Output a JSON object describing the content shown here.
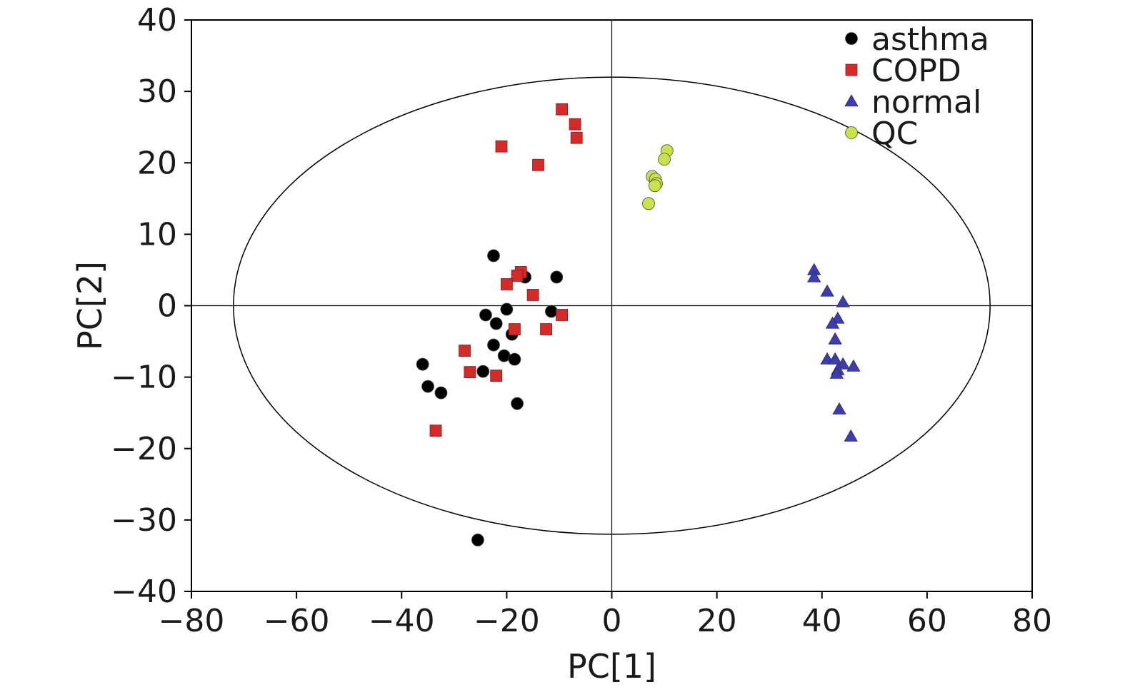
{
  "chart_data": {
    "type": "scatter",
    "xlabel": "PC[1]",
    "ylabel": "PC[2]",
    "xlim": [
      -80,
      80
    ],
    "ylim": [
      -40,
      40
    ],
    "x_ticks": [
      -80,
      -60,
      -40,
      -20,
      0,
      20,
      40,
      60,
      80
    ],
    "y_ticks": [
      -40,
      -30,
      -20,
      -10,
      0,
      10,
      20,
      30,
      40
    ],
    "x_tick_labels": [
      "−80",
      "−60",
      "−40",
      "−20",
      "0",
      "20",
      "40",
      "60",
      "80"
    ],
    "y_tick_labels": [
      "−40",
      "−30",
      "−20",
      "−10",
      "0",
      "10",
      "20",
      "30",
      "40"
    ],
    "zero_lines": true,
    "ellipse": {
      "center": [
        0,
        0
      ],
      "rx": 72,
      "ry": 32
    },
    "legend_position": "top-right",
    "legend": [
      "asthma",
      "COPD",
      "normal",
      "QC"
    ],
    "series": [
      {
        "name": "asthma",
        "marker": "circle",
        "color": "#000000",
        "points": [
          [
            -22.5,
            7
          ],
          [
            -16.5,
            4
          ],
          [
            -10.5,
            4
          ],
          [
            -24,
            -1.3
          ],
          [
            -20,
            -0.5
          ],
          [
            -11.5,
            -0.8
          ],
          [
            -22,
            -2.5
          ],
          [
            -19,
            -4
          ],
          [
            -22.5,
            -5.5
          ],
          [
            -20.5,
            -7
          ],
          [
            -18.5,
            -7.5
          ],
          [
            -36,
            -8.2
          ],
          [
            -24.5,
            -9.2
          ],
          [
            -35,
            -11.3
          ],
          [
            -32.5,
            -12.2
          ],
          [
            -18,
            -13.7
          ],
          [
            -25.5,
            -32.8
          ]
        ]
      },
      {
        "name": "COPD",
        "marker": "square",
        "color": "#d42a2a",
        "points": [
          [
            -9.5,
            27.5
          ],
          [
            -7,
            25.4
          ],
          [
            -6.7,
            23.5
          ],
          [
            -21,
            22.3
          ],
          [
            -14,
            19.7
          ],
          [
            -17.3,
            4.7
          ],
          [
            -18,
            4.2
          ],
          [
            -20,
            3
          ],
          [
            -15,
            1.5
          ],
          [
            -9.5,
            -1.3
          ],
          [
            -18.5,
            -3.3
          ],
          [
            -12.5,
            -3.3
          ],
          [
            -28,
            -6.3
          ],
          [
            -27,
            -9.3
          ],
          [
            -22,
            -9.8
          ],
          [
            -33.5,
            -17.5
          ]
        ]
      },
      {
        "name": "normal",
        "marker": "triangle",
        "color": "#3d3dab",
        "points": [
          [
            38.5,
            5
          ],
          [
            38.5,
            4
          ],
          [
            41,
            2
          ],
          [
            44,
            0.5
          ],
          [
            43,
            -1.8
          ],
          [
            42,
            -2.5
          ],
          [
            42.5,
            -4.7
          ],
          [
            41,
            -7.5
          ],
          [
            42.5,
            -7.5
          ],
          [
            44,
            -8.2
          ],
          [
            46,
            -8.5
          ],
          [
            43,
            -9
          ],
          [
            42.8,
            -9.5
          ],
          [
            43.3,
            -14.5
          ],
          [
            45.5,
            -18.3
          ]
        ]
      },
      {
        "name": "QC",
        "marker": "circle",
        "color": "#c9e24a",
        "points": [
          [
            10.5,
            21.7
          ],
          [
            10,
            20.5
          ],
          [
            7.7,
            18.1
          ],
          [
            8.3,
            17.7
          ],
          [
            8.5,
            17.1
          ],
          [
            8.2,
            16.8
          ],
          [
            7,
            14.3
          ]
        ]
      }
    ]
  }
}
